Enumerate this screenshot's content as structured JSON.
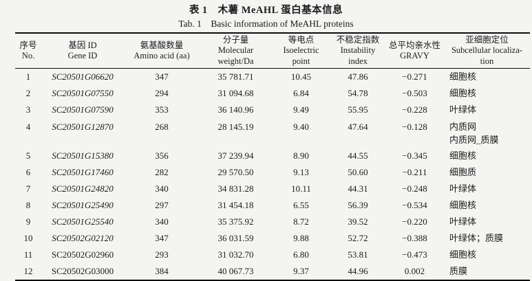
{
  "caption": {
    "title_zh": "表 1　木薯 MeAHL 蛋白基本信息",
    "title_en": "Tab. 1 Basic information of MeAHL proteins"
  },
  "table": {
    "headers": [
      {
        "zh": "序号",
        "en": [
          "No."
        ]
      },
      {
        "zh": "基因 ID",
        "en": [
          "Gene ID"
        ]
      },
      {
        "zh": "氨基酸数量",
        "en": [
          "Amino acid (aa)"
        ]
      },
      {
        "zh": "分子量",
        "en": [
          "Molecular",
          "weight/Da"
        ]
      },
      {
        "zh": "等电点",
        "en": [
          "Isoelectric",
          "point"
        ]
      },
      {
        "zh": "不稳定指数",
        "en": [
          "Instability",
          "index"
        ]
      },
      {
        "zh": "总平均亲水性",
        "en": [
          "GRAVY"
        ]
      },
      {
        "zh": "亚细胞定位",
        "en": [
          "Subcellular localiza-",
          "tion"
        ]
      }
    ],
    "rows": [
      {
        "no": "1",
        "gene": "SC20501G06620",
        "gene_italic": true,
        "aa": "347",
        "mw": "35 781.71",
        "pi": "10.45",
        "instability": "47.86",
        "gravy": "−0.271",
        "localization": [
          "细胞核"
        ]
      },
      {
        "no": "2",
        "gene": "SC20501G07550",
        "gene_italic": true,
        "aa": "294",
        "mw": "31 094.68",
        "pi": "6.84",
        "instability": "54.78",
        "gravy": "−0.503",
        "localization": [
          "细胞核"
        ]
      },
      {
        "no": "3",
        "gene": "SC20501G07590",
        "gene_italic": true,
        "aa": "353",
        "mw": "36 140.96",
        "pi": "9.49",
        "instability": "55.95",
        "gravy": "−0.228",
        "localization": [
          "叶绿体"
        ]
      },
      {
        "no": "4",
        "gene": "SC20501G12870",
        "gene_italic": true,
        "aa": "268",
        "mw": "28 145.19",
        "pi": "9.40",
        "instability": "47.64",
        "gravy": "−0.128",
        "localization": [
          "内质网",
          "内质网_质膜"
        ]
      },
      {
        "no": "5",
        "gene": "SC20501G15380",
        "gene_italic": true,
        "aa": "356",
        "mw": "37 239.94",
        "pi": "8.90",
        "instability": "44.55",
        "gravy": "−0.345",
        "localization": [
          "细胞核"
        ]
      },
      {
        "no": "6",
        "gene": "SC20501G17460",
        "gene_italic": true,
        "aa": "282",
        "mw": "29 570.50",
        "pi": "9.13",
        "instability": "50.60",
        "gravy": "−0.211",
        "localization": [
          "细胞质"
        ]
      },
      {
        "no": "7",
        "gene": "SC20501G24820",
        "gene_italic": true,
        "aa": "340",
        "mw": "34 831.28",
        "pi": "10.11",
        "instability": "44.31",
        "gravy": "−0.248",
        "localization": [
          "叶绿体"
        ]
      },
      {
        "no": "8",
        "gene": "SC20501G25490",
        "gene_italic": true,
        "aa": "297",
        "mw": "31 454.18",
        "pi": "6.55",
        "instability": "56.39",
        "gravy": "−0.534",
        "localization": [
          "细胞核"
        ]
      },
      {
        "no": "9",
        "gene": "SC20501G25540",
        "gene_italic": true,
        "aa": "340",
        "mw": "35 375.92",
        "pi": "8.72",
        "instability": "39.52",
        "gravy": "−0.220",
        "localization": [
          "叶绿体"
        ]
      },
      {
        "no": "10",
        "gene": "SC20502G02120",
        "gene_italic": true,
        "aa": "347",
        "mw": "36 031.59",
        "pi": "9.88",
        "instability": "52.72",
        "gravy": "−0.388",
        "localization": [
          "叶绿体；质膜"
        ]
      },
      {
        "no": "11",
        "gene": "SC20502G02960",
        "gene_italic": false,
        "aa": "293",
        "mw": "31 032.70",
        "pi": "6.80",
        "instability": "53.81",
        "gravy": "−0.473",
        "localization": [
          "细胞核"
        ]
      },
      {
        "no": "12",
        "gene": "SC20502G03000",
        "gene_italic": false,
        "aa": "384",
        "mw": "40 067.73",
        "pi": "9.37",
        "instability": "44.96",
        "gravy": "0.002",
        "localization": [
          "质膜"
        ]
      }
    ]
  }
}
